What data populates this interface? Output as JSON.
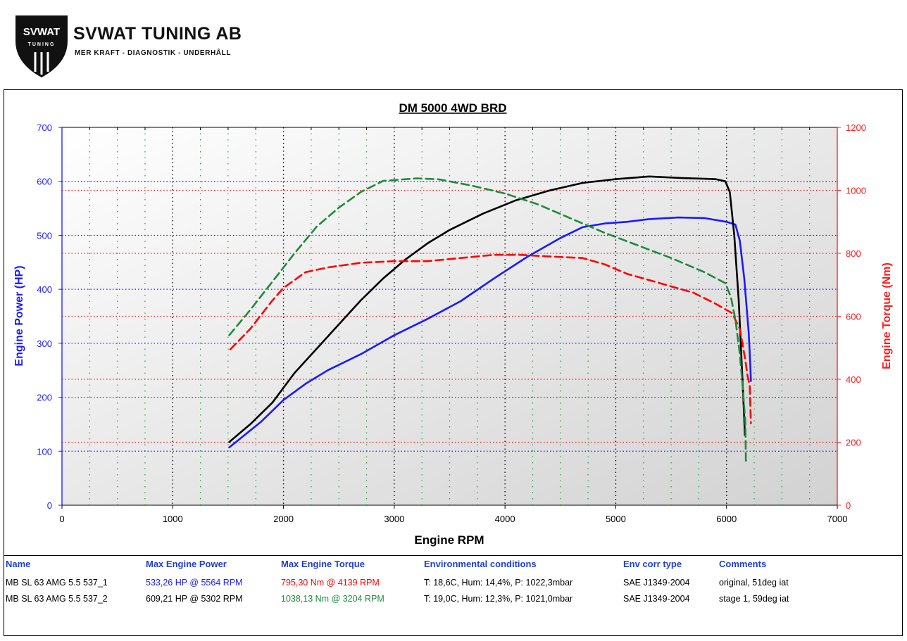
{
  "header": {
    "logo_badge": "SVWAT",
    "logo_badge_sub": "TUNING",
    "company_name": "SVWAT TUNING AB",
    "tagline": "MER KRAFT - DIAGNOSTIK - UNDERHÅLL"
  },
  "colors": {
    "power_axis": "#1a1aff",
    "torque_axis": "#ff1a1a",
    "run1_power": "#1a1aff",
    "run2_power": "#000000",
    "run1_torque": "#ff0000",
    "run2_torque": "#1e8a3a"
  },
  "chart_data": {
    "type": "line",
    "title": "DM 5000 4WD BRD",
    "xlabel": "Engine RPM",
    "ylabel_left": "Engine Power (HP)",
    "ylabel_right": "Engine Torque (Nm)",
    "xlim": [
      0,
      7000
    ],
    "ylim_left": [
      0,
      700
    ],
    "ylim_right": [
      0,
      1200
    ],
    "x_ticks": [
      "0",
      "1000",
      "2000",
      "3000",
      "4000",
      "5000",
      "6000",
      "7000"
    ],
    "y_left_ticks": [
      "0",
      "100",
      "200",
      "300",
      "400",
      "500",
      "600",
      "700"
    ],
    "y_right_ticks": [
      "0",
      "200",
      "400",
      "600",
      "800",
      "1000",
      "1200"
    ],
    "grid": true,
    "series": [
      {
        "name": "MB SL 63 AMG 5.5 537_1",
        "quantity": "power",
        "axis": "left",
        "style": "solid",
        "color": "#1a1aff",
        "points": [
          [
            1510,
            107
          ],
          [
            1800,
            155
          ],
          [
            2000,
            195
          ],
          [
            2200,
            225
          ],
          [
            2400,
            250
          ],
          [
            2700,
            280
          ],
          [
            3000,
            315
          ],
          [
            3300,
            345
          ],
          [
            3600,
            378
          ],
          [
            3900,
            420
          ],
          [
            4200,
            460
          ],
          [
            4500,
            495
          ],
          [
            4700,
            515
          ],
          [
            4900,
            522
          ],
          [
            5100,
            525
          ],
          [
            5300,
            530
          ],
          [
            5564,
            533
          ],
          [
            5800,
            532
          ],
          [
            6000,
            525
          ],
          [
            6080,
            520
          ],
          [
            6120,
            490
          ],
          [
            6160,
            420
          ],
          [
            6200,
            320
          ],
          [
            6215,
            260
          ],
          [
            6220,
            230
          ]
        ]
      },
      {
        "name": "MB SL 63 AMG 5.5 537_2",
        "quantity": "power",
        "axis": "left",
        "style": "solid",
        "color": "#000000",
        "points": [
          [
            1510,
            117
          ],
          [
            1700,
            150
          ],
          [
            1900,
            190
          ],
          [
            2100,
            245
          ],
          [
            2300,
            290
          ],
          [
            2500,
            335
          ],
          [
            2700,
            380
          ],
          [
            2900,
            420
          ],
          [
            3100,
            455
          ],
          [
            3300,
            485
          ],
          [
            3500,
            510
          ],
          [
            3800,
            540
          ],
          [
            4100,
            565
          ],
          [
            4400,
            583
          ],
          [
            4700,
            597
          ],
          [
            5000,
            604
          ],
          [
            5302,
            609
          ],
          [
            5600,
            606
          ],
          [
            5900,
            604
          ],
          [
            5990,
            600
          ],
          [
            6030,
            580
          ],
          [
            6070,
            500
          ],
          [
            6110,
            380
          ],
          [
            6140,
            250
          ],
          [
            6160,
            160
          ],
          [
            6165,
            130
          ]
        ]
      },
      {
        "name": "MB SL 63 AMG 5.5 537_1",
        "quantity": "torque",
        "axis": "right",
        "style": "dashed",
        "color": "#ff0000",
        "points": [
          [
            1520,
            495
          ],
          [
            1700,
            560
          ],
          [
            1900,
            650
          ],
          [
            2000,
            690
          ],
          [
            2200,
            740
          ],
          [
            2400,
            755
          ],
          [
            2700,
            770
          ],
          [
            3000,
            775
          ],
          [
            3300,
            775
          ],
          [
            3600,
            785
          ],
          [
            3900,
            795
          ],
          [
            4139,
            795
          ],
          [
            4400,
            790
          ],
          [
            4700,
            785
          ],
          [
            4900,
            765
          ],
          [
            5100,
            735
          ],
          [
            5400,
            705
          ],
          [
            5700,
            675
          ],
          [
            5900,
            640
          ],
          [
            6050,
            610
          ],
          [
            6120,
            560
          ],
          [
            6170,
            460
          ],
          [
            6190,
            410
          ],
          [
            6210,
            380
          ],
          [
            6220,
            260
          ]
        ]
      },
      {
        "name": "MB SL 63 AMG 5.5 537_2",
        "quantity": "torque",
        "axis": "right",
        "style": "dashed",
        "color": "#1e8a3a",
        "points": [
          [
            1510,
            540
          ],
          [
            1700,
            620
          ],
          [
            1900,
            710
          ],
          [
            2100,
            800
          ],
          [
            2300,
            885
          ],
          [
            2500,
            945
          ],
          [
            2700,
            995
          ],
          [
            2900,
            1030
          ],
          [
            3204,
            1038
          ],
          [
            3400,
            1035
          ],
          [
            3700,
            1015
          ],
          [
            4000,
            990
          ],
          [
            4300,
            955
          ],
          [
            4600,
            910
          ],
          [
            4900,
            865
          ],
          [
            5200,
            825
          ],
          [
            5500,
            785
          ],
          [
            5800,
            740
          ],
          [
            5990,
            705
          ],
          [
            6040,
            660
          ],
          [
            6080,
            590
          ],
          [
            6120,
            480
          ],
          [
            6150,
            360
          ],
          [
            6170,
            260
          ],
          [
            6175,
            140
          ]
        ]
      }
    ]
  },
  "results_table": {
    "headers": [
      "Name",
      "Max Engine Power",
      "Max Engine Torque",
      "Environmental conditions",
      "Env corr type",
      "Comments"
    ],
    "rows": [
      {
        "name": "MB SL 63 AMG 5.5 537_1",
        "max_power": "533,26 HP @ 5564 RPM",
        "max_torque": "795,30 Nm @ 4139 RPM",
        "env": "T: 18,6C, Hum: 14,4%, P: 1022,3mbar",
        "corr": "SAE J1349-2004",
        "comment": "original, 51deg iat"
      },
      {
        "name": "MB SL 63 AMG 5.5 537_2",
        "max_power": "609,21 HP @ 5302 RPM",
        "max_torque": "1038,13 Nm @ 3204 RPM",
        "env": "T: 19,0C, Hum: 12,3%, P: 1021,0mbar",
        "corr": "SAE J1349-2004",
        "comment": "stage 1, 59deg iat"
      }
    ]
  }
}
